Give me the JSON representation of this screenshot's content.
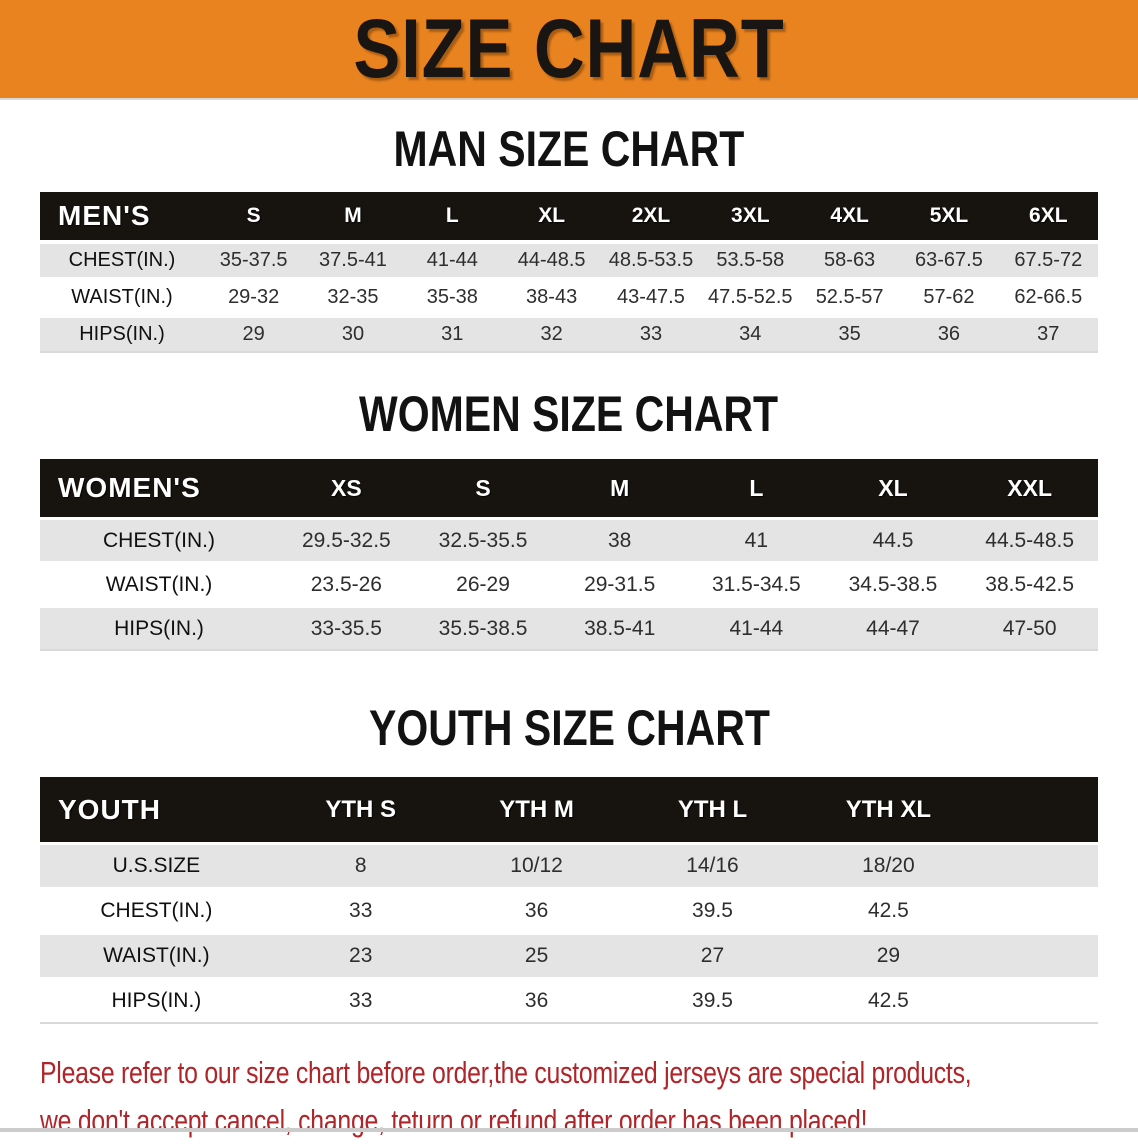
{
  "banner": {
    "title": "SIZE CHART"
  },
  "sections": [
    {
      "heading": "MAN SIZE CHART",
      "table": {
        "name": "mens-size-table",
        "group_label": "MEN'S",
        "columns": [
          "S",
          "M",
          "L",
          "XL",
          "2XL",
          "3XL",
          "4XL",
          "5XL",
          "6XL"
        ],
        "rows": [
          {
            "label": "CHEST(IN.)",
            "values": [
              "35-37.5",
              "37.5-41",
              "41-44",
              "44-48.5",
              "48.5-53.5",
              "53.5-58",
              "58-63",
              "63-67.5",
              "67.5-72"
            ]
          },
          {
            "label": "WAIST(IN.)",
            "values": [
              "29-32",
              "32-35",
              "35-38",
              "38-43",
              "43-47.5",
              "47.5-52.5",
              "52.5-57",
              "57-62",
              "62-66.5"
            ]
          },
          {
            "label": "HIPS(IN.)",
            "values": [
              "29",
              "30",
              "31",
              "32",
              "33",
              "34",
              "35",
              "36",
              "37"
            ]
          }
        ]
      }
    },
    {
      "heading": "WOMEN SIZE CHART",
      "table": {
        "name": "womens-size-table",
        "group_label": "WOMEN'S",
        "columns": [
          "XS",
          "S",
          "M",
          "L",
          "XL",
          "XXL"
        ],
        "rows": [
          {
            "label": "CHEST(IN.)",
            "values": [
              "29.5-32.5",
              "32.5-35.5",
              "38",
              "41",
              "44.5",
              "44.5-48.5"
            ]
          },
          {
            "label": "WAIST(IN.)",
            "values": [
              "23.5-26",
              "26-29",
              "29-31.5",
              "31.5-34.5",
              "34.5-38.5",
              "38.5-42.5"
            ]
          },
          {
            "label": "HIPS(IN.)",
            "values": [
              "33-35.5",
              "35.5-38.5",
              "38.5-41",
              "41-44",
              "44-47",
              "47-50"
            ]
          }
        ]
      }
    },
    {
      "heading": "YOUTH SIZE CHART",
      "table": {
        "name": "youth-size-table",
        "group_label": "YOUTH",
        "columns": [
          "YTH S",
          "YTH M",
          "YTH L",
          "YTH XL"
        ],
        "rows": [
          {
            "label": "U.S.SIZE",
            "values": [
              "8",
              "10/12",
              "14/16",
              "18/20"
            ]
          },
          {
            "label": "CHEST(IN.)",
            "values": [
              "33",
              "36",
              "39.5",
              "42.5"
            ]
          },
          {
            "label": "WAIST(IN.)",
            "values": [
              "23",
              "25",
              "27",
              "29"
            ]
          },
          {
            "label": "HIPS(IN.)",
            "values": [
              "33",
              "36",
              "39.5",
              "42.5"
            ]
          }
        ]
      }
    }
  ],
  "footer": {
    "line1": "Please refer to our size chart before order,the customized jerseys are special products,",
    "line2": "we don't accept cancel, change, teturn or refund after order has been placed!"
  },
  "colors": {
    "banner_orange": "#E8831F",
    "header_black": "#17130F",
    "row_gray": "#E4E4E4",
    "footer_red": "#B0252A"
  }
}
